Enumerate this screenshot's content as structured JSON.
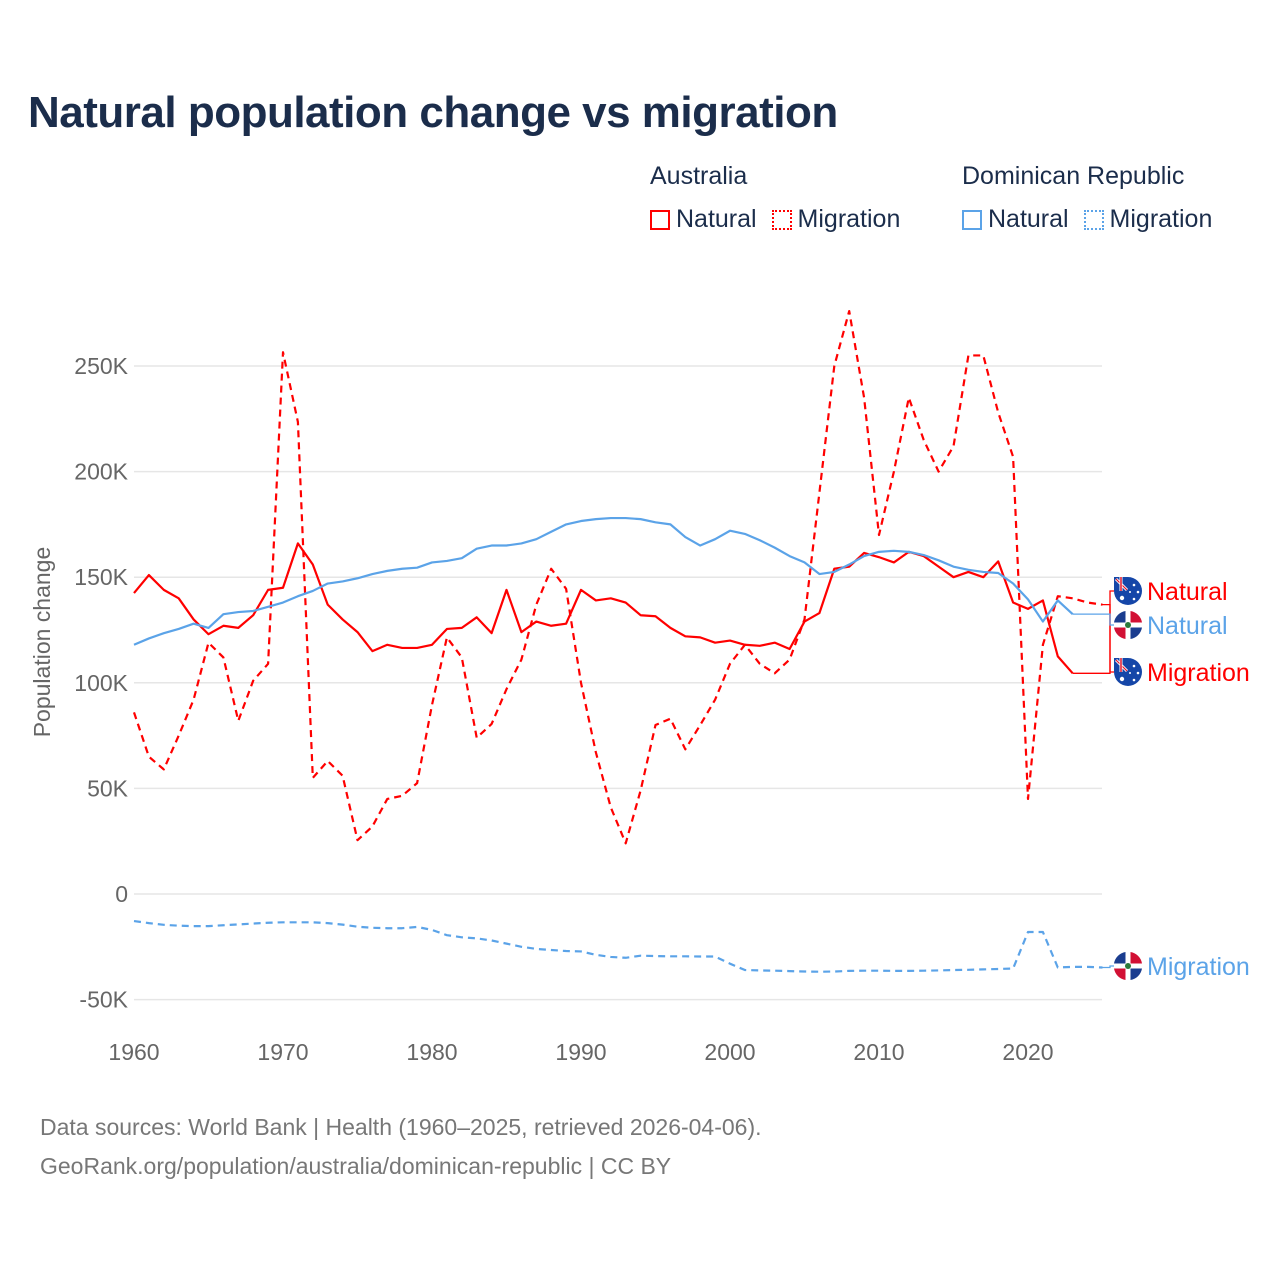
{
  "chart_data": {
    "type": "line",
    "title": "Natural population change vs migration",
    "xlabel": "",
    "ylabel": "Population change",
    "xlim": [
      1960,
      2025
    ],
    "ylim": [
      -55000,
      285000
    ],
    "grid": true,
    "x_ticks": [
      "1960",
      "1970",
      "1980",
      "1990",
      "2000",
      "2010",
      "2020"
    ],
    "x_tick_values": [
      1960,
      1970,
      1980,
      1990,
      2000,
      2010,
      2020
    ],
    "y_ticks": [
      "-50K",
      "0",
      "50K",
      "100K",
      "150K",
      "200K",
      "250K"
    ],
    "y_tick_values": [
      -50000,
      0,
      50000,
      100000,
      150000,
      200000,
      250000
    ],
    "legend": {
      "placement": "top-right",
      "groups": [
        {
          "name": "Australia",
          "items": [
            "Natural",
            "Migration"
          ]
        },
        {
          "name": "Dominican Republic",
          "items": [
            "Natural",
            "Migration"
          ]
        }
      ]
    },
    "x_start": 1960,
    "series": [
      {
        "name": "Australia Natural",
        "country": "Australia",
        "kind": "Natural",
        "label": "Natural",
        "color": "#ff0000",
        "dashed": false,
        "values": [
          142500,
          151000,
          144000,
          140000,
          130000,
          123000,
          127000,
          126000,
          132000,
          144000,
          145000,
          166000,
          156000,
          137000,
          130000,
          124000,
          115000,
          118000,
          116500,
          116500,
          118000,
          125500,
          126000,
          131000,
          123500,
          144000,
          124000,
          129000,
          127000,
          128000,
          144000,
          139000,
          140000,
          138000,
          132000,
          131500,
          126000,
          122000,
          121500,
          119000,
          120000,
          118000,
          117500,
          119000,
          116000,
          129000,
          133000,
          154000,
          155000,
          161500,
          159500,
          157000,
          162000,
          160000,
          155000,
          150000,
          152500,
          150000,
          157500,
          138000,
          135000,
          139000,
          112500,
          104500
        ]
      },
      {
        "name": "Australia Migration",
        "country": "Australia",
        "kind": "Migration",
        "label": "Migration",
        "color": "#ff0000",
        "dashed": true,
        "values": [
          86000,
          65000,
          59000,
          75000,
          92000,
          119000,
          112000,
          82000,
          101000,
          109000,
          256500,
          223500,
          55000,
          63000,
          56000,
          25500,
          32000,
          45000,
          46500,
          52500,
          89500,
          121500,
          112000,
          74000,
          80500,
          97000,
          111000,
          137000,
          154000,
          144500,
          100000,
          67000,
          41000,
          24000,
          49000,
          80000,
          83000,
          68500,
          80000,
          92000,
          109000,
          118000,
          109000,
          104500,
          111000,
          130000,
          190000,
          250000,
          276000,
          235000,
          170000,
          200000,
          235000,
          215000,
          200000,
          212000,
          255000,
          255000,
          228000,
          207000,
          45000,
          118000,
          141000,
          140000,
          138000,
          137000
        ]
      },
      {
        "name": "Dominican Republic Natural",
        "country": "Dominican Republic",
        "kind": "Natural",
        "label": "Natural",
        "color": "#5ba3e8",
        "dashed": false,
        "values": [
          118000,
          121000,
          123500,
          125500,
          128000,
          126000,
          132500,
          133500,
          134000,
          136000,
          138000,
          141000,
          143500,
          147000,
          148000,
          149500,
          151500,
          153000,
          154000,
          154500,
          157000,
          157700,
          159000,
          163500,
          165000,
          165000,
          166000,
          168000,
          171500,
          175000,
          176600,
          177500,
          178000,
          178000,
          177500,
          176000,
          175000,
          169000,
          165000,
          168000,
          172000,
          170500,
          167500,
          164000,
          160000,
          157000,
          151500,
          152500,
          156000,
          160000,
          162000,
          162500,
          162000,
          160500,
          158000,
          155000,
          153500,
          152500,
          152000,
          147000,
          139500,
          129000,
          139000,
          132500
        ]
      },
      {
        "name": "Dominican Republic Migration",
        "country": "Dominican Republic",
        "kind": "Migration",
        "label": "Migration",
        "color": "#5ba3e8",
        "dashed": true,
        "values": [
          -12800,
          -13800,
          -14600,
          -15000,
          -15200,
          -15200,
          -14800,
          -14400,
          -14000,
          -13600,
          -13400,
          -13400,
          -13400,
          -13800,
          -14500,
          -15500,
          -16000,
          -16200,
          -16200,
          -15600,
          -17000,
          -19500,
          -20500,
          -21000,
          -22000,
          -23500,
          -25000,
          -26000,
          -26500,
          -27000,
          -27200,
          -28800,
          -29800,
          -30200,
          -29200,
          -29400,
          -29500,
          -29500,
          -29600,
          -29600,
          -33000,
          -36000,
          -36200,
          -36300,
          -36500,
          -36700,
          -36800,
          -36700,
          -36400,
          -36300,
          -36300,
          -36400,
          -36400,
          -36300,
          -36200,
          -36000,
          -35900,
          -35700,
          -35500,
          -35300,
          -18000,
          -18000,
          -34800,
          -34500,
          -34500,
          -34800
        ]
      }
    ]
  },
  "header": {
    "title": "Natural population change vs migration"
  },
  "legend": {
    "australia": {
      "name": "Australia",
      "natural": "Natural",
      "migration": "Migration"
    },
    "dominican": {
      "name": "Dominican Republic",
      "natural": "Natural",
      "migration": "Migration"
    }
  },
  "footer": {
    "line1": "Data sources: World Bank | Health (1960–2025, retrieved 2026-04-06).",
    "line2": "GeoRank.org/population/australia/dominican-republic | CC BY"
  }
}
